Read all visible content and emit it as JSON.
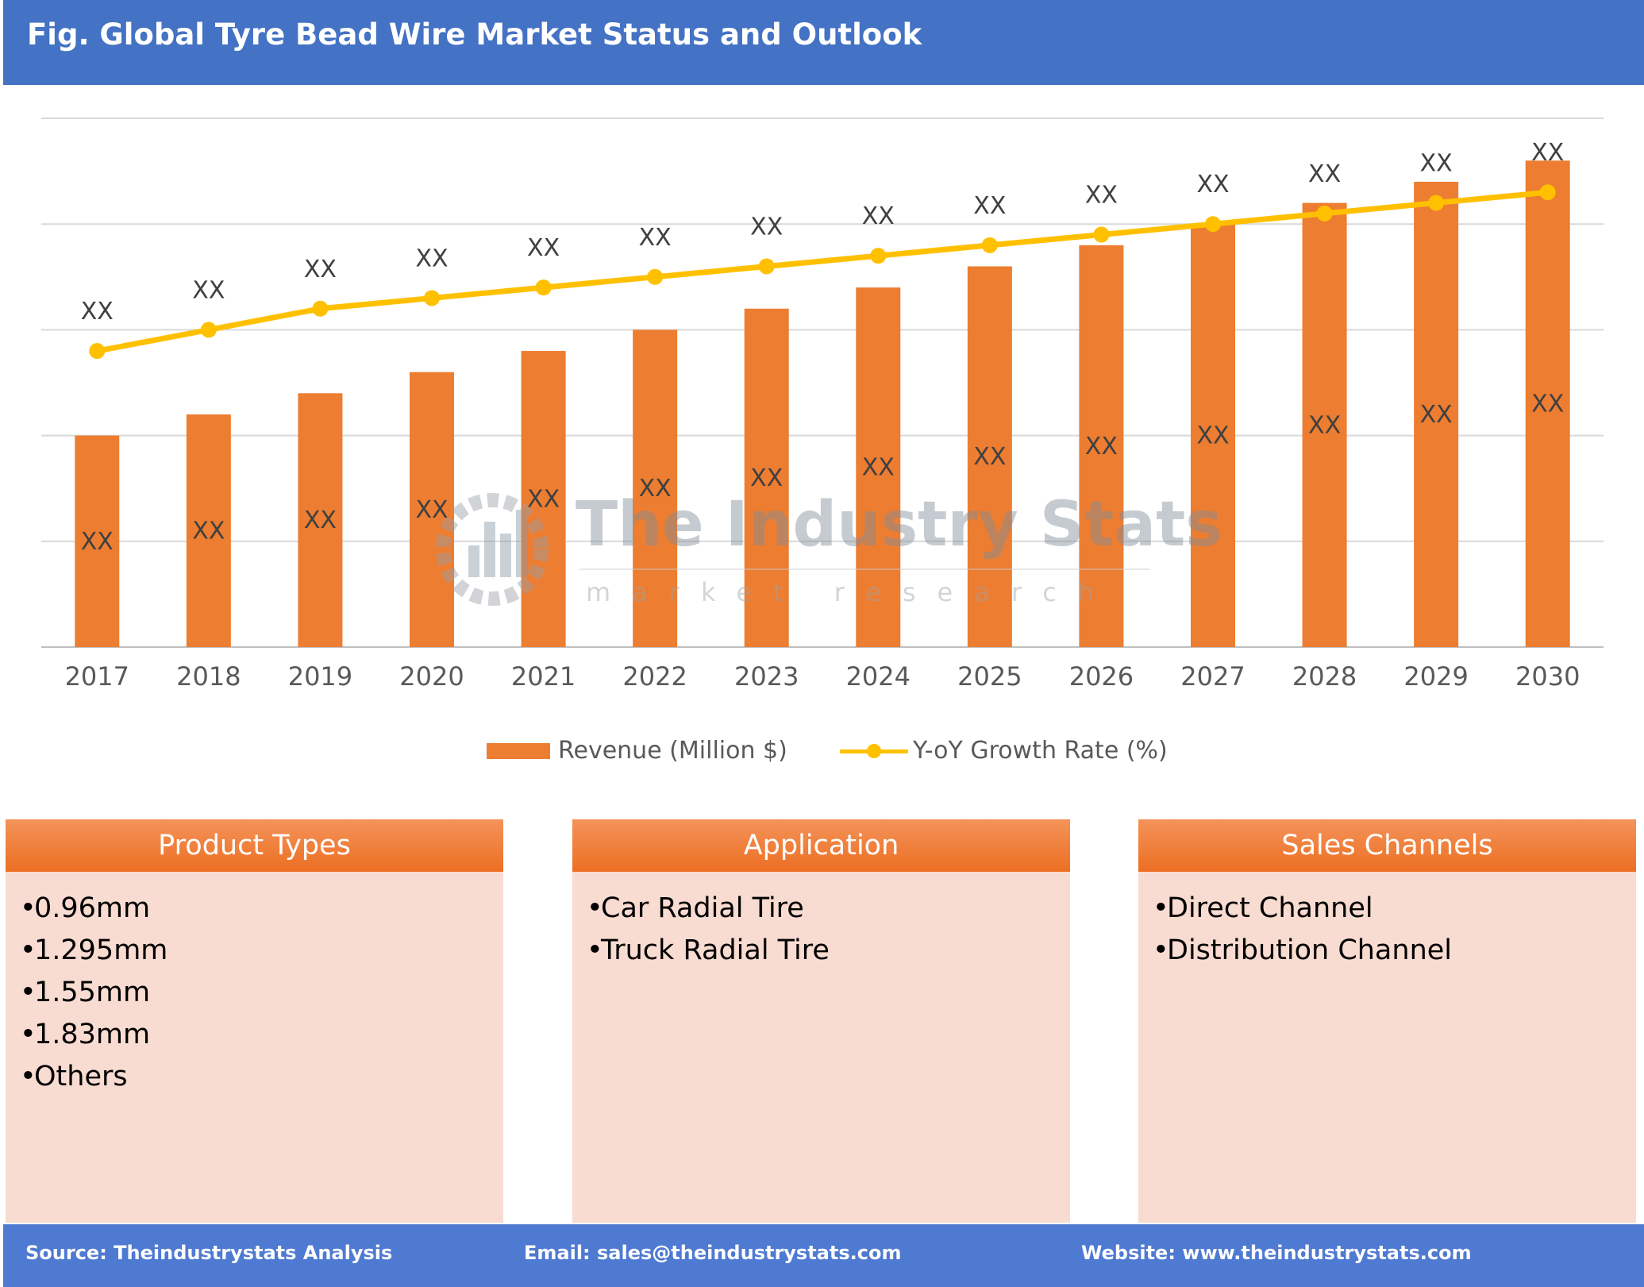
{
  "header": {
    "title": "Fig. Global Tyre Bead Wire Market Status and Outlook"
  },
  "chart_data": {
    "type": "bar",
    "categories": [
      "2017",
      "2018",
      "2019",
      "2020",
      "2021",
      "2022",
      "2023",
      "2024",
      "2025",
      "2026",
      "2027",
      "2028",
      "2029",
      "2030"
    ],
    "series": [
      {
        "name": "Revenue (Million $)",
        "type": "bar",
        "color": "#ed7d31",
        "values": [
          2.0,
          2.2,
          2.4,
          2.6,
          2.8,
          3.0,
          3.2,
          3.4,
          3.6,
          3.8,
          4.0,
          4.2,
          4.4,
          4.6
        ],
        "labels": [
          "XX",
          "XX",
          "XX",
          "XX",
          "XX",
          "XX",
          "XX",
          "XX",
          "XX",
          "XX",
          "XX",
          "XX",
          "XX",
          "XX"
        ]
      },
      {
        "name": "Y-oY Growth Rate (%)",
        "type": "line",
        "color": "#ffc000",
        "values": [
          2.8,
          3.0,
          3.2,
          3.3,
          3.4,
          3.5,
          3.6,
          3.7,
          3.8,
          3.9,
          4.0,
          4.1,
          4.2,
          4.3
        ],
        "labels": [
          "XX",
          "XX",
          "XX",
          "XX",
          "XX",
          "XX",
          "XX",
          "XX",
          "XX",
          "XX",
          "XX",
          "XX",
          "XX",
          "XX"
        ]
      }
    ],
    "ylim": [
      0,
      5
    ],
    "grid": true,
    "legend_position": "bottom",
    "xlabel": "",
    "ylabel": ""
  },
  "watermark": {
    "name": "The Industry Stats",
    "tagline": "market research"
  },
  "panels": [
    {
      "title": "Product Types",
      "items": [
        "0.96mm",
        "1.295mm",
        "1.55mm",
        "1.83mm",
        "Others"
      ]
    },
    {
      "title": "Application",
      "items": [
        "Car Radial Tire",
        "Truck Radial Tire"
      ]
    },
    {
      "title": "Sales Channels",
      "items": [
        "Direct Channel",
        "Distribution Channel"
      ]
    }
  ],
  "bullet": "•",
  "footer": {
    "source": "Source: Theindustrystats Analysis",
    "email": "Email: sales@theindustrystats.com",
    "website": "Website: www.theindustrystats.com"
  }
}
